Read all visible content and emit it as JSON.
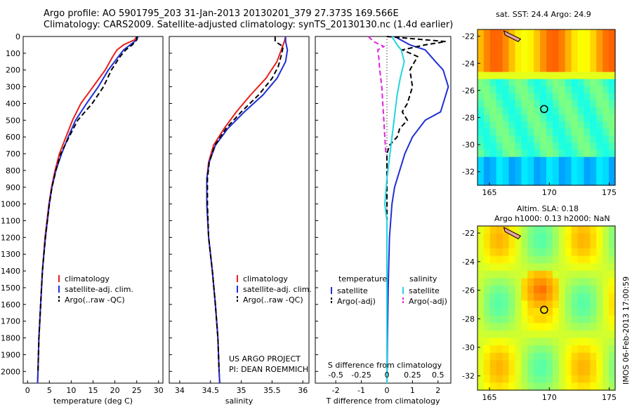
{
  "header": {
    "line1": "Argo profile: AO 5901795_203 31-Jan-2013 20130201_379 27.373S 169.566E",
    "line2": "Climatology: CARS2009. Satellite-adjusted climatology: synTS_20130130.nc (1.4d earlier)"
  },
  "credits": {
    "project": "US ARGO PROJECT",
    "pi": "PI: DEAN ROEMMICH",
    "imos": "IMOS 06-Feb-2013 17:00:59"
  },
  "map_sst": {
    "title": "sat. SST: 24.4  Argo: 24.9",
    "xticks": [
      "165",
      "170",
      "175"
    ],
    "yticks": [
      "-22",
      "-24",
      "-26",
      "-28",
      "-30",
      "-32"
    ]
  },
  "map_sla": {
    "title1": "Altim. SLA: 0.18",
    "title2": "Argo h1000: 0.13 h2000: NaN",
    "xticks": [
      "165",
      "170",
      "175"
    ],
    "yticks": [
      "-22",
      "-24",
      "-26",
      "-28",
      "-30",
      "-32"
    ]
  },
  "colors": {
    "climatology": "#e8201c",
    "satellite": "#1f2fd6",
    "argo": "#000000",
    "sal_satellite": "#22d4e0",
    "sal_argo": "#e020e0"
  },
  "chart_data": [
    {
      "type": "line",
      "xlabel": "temperature (deg C)",
      "xticks": [
        "0",
        "5",
        "10",
        "15",
        "20",
        "25",
        "30"
      ],
      "xlim": [
        -1,
        31
      ],
      "ylim": [
        2070,
        0
      ],
      "yticks": [
        "0",
        "100",
        "200",
        "300",
        "400",
        "500",
        "600",
        "700",
        "800",
        "900",
        "1000",
        "1100",
        "1200",
        "1300",
        "1400",
        "1500",
        "1600",
        "1700",
        "1800",
        "1900",
        "2000"
      ],
      "legend": [
        "climatology",
        "satellite-adj. clim.",
        "Argo(..raw -QC)"
      ],
      "series": [
        {
          "name": "climatology",
          "depth": [
            0,
            20,
            50,
            80,
            120,
            200,
            300,
            400,
            500,
            600,
            700,
            800,
            900,
            1000,
            1200,
            1400,
            1600,
            1800,
            2000,
            2070
          ],
          "values": [
            25,
            24.5,
            22,
            20.5,
            19.5,
            17.8,
            15,
            12.2,
            10.3,
            8.8,
            7.3,
            6.3,
            5.5,
            4.9,
            4,
            3.4,
            3,
            2.6,
            2.4,
            2.3
          ]
        },
        {
          "name": "satellite-adj. clim.",
          "depth": [
            0,
            20,
            50,
            80,
            120,
            200,
            300,
            400,
            500,
            600,
            700,
            800,
            900,
            1000,
            1200,
            1400,
            1600,
            1800,
            2000,
            2070
          ],
          "values": [
            25.3,
            25,
            23.5,
            22,
            20.8,
            18.5,
            16.2,
            13.5,
            11,
            9.3,
            7.8,
            6.5,
            5.6,
            5,
            4.1,
            3.4,
            3,
            2.6,
            2.4,
            2.3
          ]
        },
        {
          "name": "Argo(..raw -QC)",
          "depth": [
            0,
            20,
            50,
            80,
            120,
            200,
            300,
            400,
            500,
            600,
            700,
            800,
            900,
            1000,
            1200,
            1400,
            1600,
            1800,
            2000
          ],
          "values": [
            25,
            25,
            24,
            22.5,
            21.2,
            19.2,
            17.4,
            14.8,
            11.5,
            9.5,
            7.6,
            6.5,
            5.6,
            5,
            4.1,
            3.4,
            3,
            2.6,
            2.4
          ]
        }
      ]
    },
    {
      "type": "line",
      "xlabel": "salinity",
      "xticks": [
        "34",
        "34.5",
        "35",
        "35.5",
        "36"
      ],
      "xlim": [
        33.83,
        36.1
      ],
      "ylim": [
        2070,
        0
      ],
      "legend": [
        "climatology",
        "satellite-adj. clim.",
        "Argo(..raw -QC)"
      ],
      "series": [
        {
          "name": "climatology",
          "depth": [
            0,
            30,
            80,
            150,
            250,
            350,
            450,
            550,
            650,
            750,
            850,
            1000,
            1200,
            1400,
            1600,
            1800,
            2000,
            2070
          ],
          "values": [
            35.72,
            35.7,
            35.65,
            35.58,
            35.4,
            35.15,
            34.92,
            34.72,
            34.55,
            34.47,
            34.44,
            34.44,
            34.47,
            34.53,
            34.58,
            34.62,
            34.64,
            34.65
          ]
        },
        {
          "name": "satellite-adj. clim.",
          "depth": [
            0,
            30,
            80,
            150,
            250,
            350,
            450,
            550,
            650,
            750,
            850,
            1000,
            1200,
            1400,
            1600,
            1800,
            2000,
            2070
          ],
          "values": [
            35.72,
            35.72,
            35.75,
            35.72,
            35.58,
            35.35,
            35.05,
            34.78,
            34.58,
            34.48,
            34.44,
            34.44,
            34.47,
            34.53,
            34.58,
            34.62,
            34.64,
            34.65
          ]
        },
        {
          "name": "Argo(..raw -QC)",
          "depth": [
            0,
            30,
            60,
            100,
            180,
            250,
            350,
            450,
            550,
            650,
            750,
            850,
            1000,
            1200,
            1400,
            1600,
            1800,
            2000
          ],
          "values": [
            35.55,
            35.55,
            35.68,
            35.66,
            35.6,
            35.5,
            35.28,
            35,
            34.75,
            34.57,
            34.48,
            34.45,
            34.45,
            34.47,
            34.53,
            34.58,
            34.62,
            34.64
          ]
        }
      ]
    },
    {
      "type": "line",
      "xlabel": "T difference from climatology",
      "xlabel_top": "S difference from climatology",
      "xticks": [
        "-2",
        "-1",
        "0",
        "1",
        "2"
      ],
      "xticks_top": [
        "-0.5",
        "-0.25",
        "0",
        "0.25",
        "0.5"
      ],
      "xlim": [
        -2.8,
        2.5
      ],
      "ylim": [
        2070,
        0
      ],
      "legend_headers": [
        "temperature",
        "salinity"
      ],
      "legend": [
        "satellite",
        "Argo(-adj)",
        "satellite",
        "Argo(-adj)"
      ],
      "series": [
        {
          "name": "satellite",
          "depth": [
            0,
            50,
            80,
            150,
            200,
            300,
            400,
            450,
            500,
            600,
            700,
            800,
            900,
            1000,
            1200,
            1500,
            1800,
            2070
          ],
          "values": [
            0.3,
            0.9,
            1.5,
            1.9,
            2.2,
            2.4,
            2.2,
            2.1,
            1.5,
            1,
            0.7,
            0.5,
            0.3,
            0.2,
            0.1,
            0.05,
            0.02,
            0
          ]
        },
        {
          "name": "Argo(-adj)",
          "depth": [
            0,
            30,
            50,
            80,
            120,
            200,
            300,
            400,
            450,
            500,
            550,
            600,
            650,
            700,
            800,
            900,
            1000,
            1200,
            1500,
            1800,
            2000
          ],
          "values": [
            0,
            2.3,
            1.5,
            0.6,
            1.2,
            0.9,
            1.0,
            0.8,
            0.6,
            0.8,
            0.5,
            0.4,
            0.1,
            0,
            0,
            0,
            0,
            0,
            0,
            0,
            0
          ]
        },
        {
          "name": "satellite",
          "depth": [
            0,
            50,
            80,
            150,
            250,
            350,
            450,
            550,
            650,
            750,
            850,
            1000,
            1100,
            1200,
            1400,
            1600,
            1800,
            2070
          ],
          "values": [
            0.05,
            0.1,
            0.14,
            0.17,
            0.13,
            0.1,
            0.08,
            0.06,
            0.04,
            0.02,
            0,
            -0.02,
            0,
            0,
            0,
            0,
            0,
            0
          ]
        },
        {
          "name": "Argo(-adj)",
          "depth": [
            0,
            30,
            60,
            80,
            120,
            200,
            300,
            400,
            500,
            600,
            700
          ],
          "values": [
            -0.18,
            -0.13,
            -0.03,
            -0.09,
            -0.08,
            -0.07,
            -0.05,
            -0.04,
            -0.03,
            -0.02,
            -0.01
          ]
        }
      ]
    }
  ]
}
